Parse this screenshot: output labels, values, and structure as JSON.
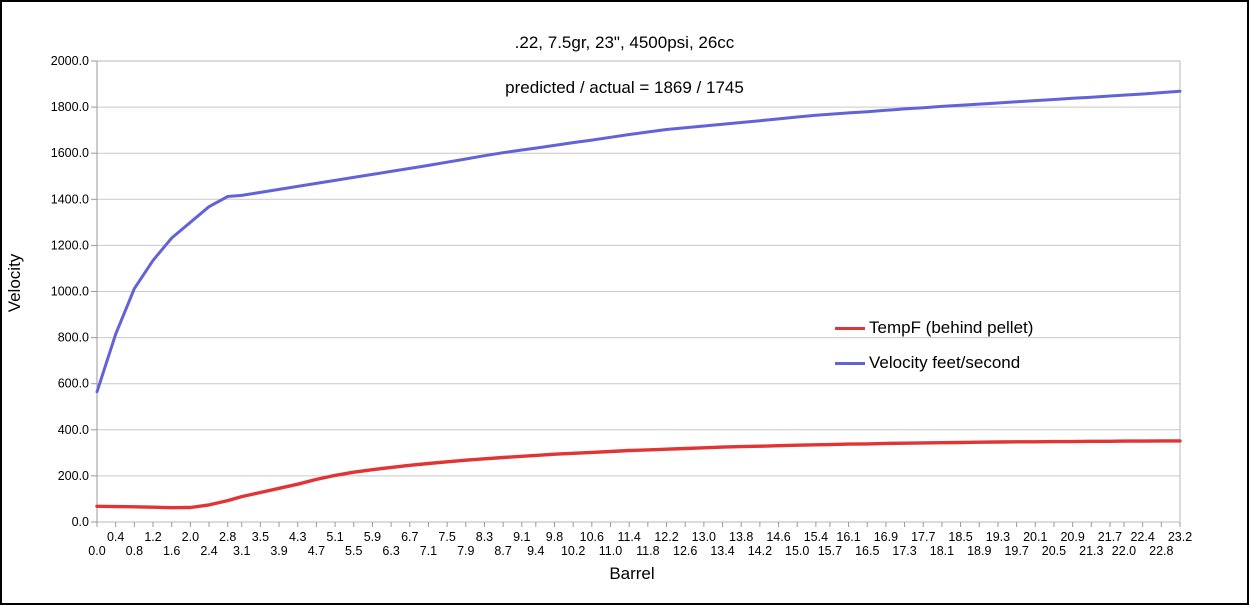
{
  "window": {
    "title": "ballistics-velocity-chart"
  },
  "chart_data": {
    "type": "line",
    "title": ".22, 7.5gr, 23\", 4500psi, 26cc",
    "subtitle": "predicted / actual = 1869 / 1745",
    "xlabel": "Barrel",
    "ylabel": "Velocity",
    "xlim": [
      0.0,
      23.2
    ],
    "ylim": [
      0.0,
      2000.0
    ],
    "ytick_step": 200,
    "ytick_labels": [
      "0.0",
      "200.0",
      "400.0",
      "600.0",
      "800.0",
      "1000.0",
      "1200.0",
      "1400.0",
      "1600.0",
      "1800.0",
      "2000.0"
    ],
    "grid": "horizontal",
    "legend_position": "inside-right",
    "x": [
      0.0,
      0.4,
      0.8,
      1.2,
      1.6,
      2.0,
      2.4,
      2.8,
      3.1,
      3.5,
      3.9,
      4.3,
      4.7,
      5.1,
      5.5,
      5.9,
      6.3,
      6.7,
      7.1,
      7.5,
      7.9,
      8.3,
      8.7,
      9.1,
      9.4,
      9.8,
      10.2,
      10.6,
      11.0,
      11.4,
      11.8,
      12.2,
      12.6,
      13.0,
      13.4,
      13.8,
      14.2,
      14.6,
      15.0,
      15.4,
      15.7,
      16.1,
      16.5,
      16.9,
      17.3,
      17.7,
      18.1,
      18.5,
      18.9,
      19.3,
      19.7,
      20.1,
      20.5,
      20.9,
      21.3,
      21.7,
      22.0,
      22.4,
      22.8,
      23.2
    ],
    "series": [
      {
        "name": "TempF (behind pellet)",
        "color": "#e13434",
        "line_width": 3.4,
        "values": [
          68,
          67,
          66,
          64,
          62,
          63,
          74,
          93,
          110,
          128,
          146,
          164,
          185,
          202,
          216,
          227,
          237,
          246,
          254,
          261,
          268,
          274,
          280,
          285,
          289,
          294,
          298,
          302,
          306,
          310,
          313,
          316,
          319,
          322,
          325,
          327,
          329,
          331,
          333,
          335,
          336,
          338,
          339,
          341,
          342,
          343,
          344,
          345,
          346,
          347,
          348,
          348,
          349,
          349,
          350,
          350,
          351,
          351,
          352,
          352
        ]
      },
      {
        "name": "Velocity feet/second",
        "color": "#6363d8",
        "line_width": 3.0,
        "values": [
          565,
          815,
          1012,
          1135,
          1232,
          1300,
          1368,
          1412,
          1417,
          1430,
          1443,
          1456,
          1469,
          1482,
          1495,
          1508,
          1521,
          1534,
          1547,
          1561,
          1575,
          1589,
          1602,
          1614,
          1622,
          1634,
          1646,
          1657,
          1669,
          1681,
          1692,
          1703,
          1710,
          1718,
          1726,
          1733,
          1741,
          1749,
          1757,
          1765,
          1769,
          1775,
          1780,
          1786,
          1792,
          1797,
          1803,
          1808,
          1813,
          1818,
          1823,
          1828,
          1833,
          1838,
          1843,
          1848,
          1852,
          1857,
          1863,
          1869
        ]
      }
    ]
  },
  "colors": {
    "gridline": "#c9c9c9",
    "axis": "#9a9a9a",
    "plot_border": "#b9b9b9",
    "text": "#000000"
  }
}
